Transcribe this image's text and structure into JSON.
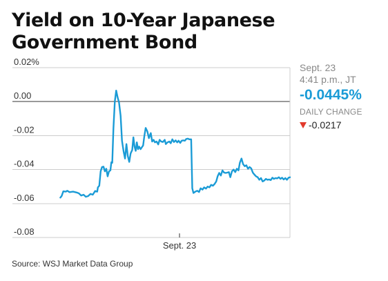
{
  "header": {
    "title": "Yield on 10-Year Japanese Government Bond"
  },
  "colors": {
    "line": "#1a9bd6",
    "grid": "#cccccc",
    "zero_line": "#333333",
    "down_arrow": "#e23a2c"
  },
  "panel": {
    "date": "Sept. 23",
    "time": "4:41 p.m., JT",
    "value": "-0.0445%",
    "change_label": "DAILY CHANGE",
    "change": "-0.0217",
    "change_direction_icon": "down-triangle-icon"
  },
  "footer": {
    "source": "Source: WSJ Market Data Group"
  },
  "chart_data": {
    "type": "line",
    "title": "Yield on 10-Year Japanese Government Bond",
    "xlabel": "",
    "ylabel": "",
    "ylim": [
      -0.08,
      0.02
    ],
    "xlim": [
      0,
      100
    ],
    "grid": true,
    "y_ticks": [
      0.02,
      0.0,
      -0.02,
      -0.04,
      -0.06,
      -0.08
    ],
    "y_tick_labels": [
      "0.02%",
      "0.00",
      "-0.02",
      "-0.04",
      "-0.06",
      "-0.08"
    ],
    "x_tick_labels": [
      {
        "x": 52.4,
        "label": "Sept. 23"
      }
    ],
    "series": [
      {
        "values": [
          [
            1.0,
            -0.0565
          ],
          [
            1.6,
            -0.0555
          ],
          [
            2.3,
            -0.0528
          ],
          [
            3.4,
            -0.053
          ],
          [
            4.0,
            -0.0525
          ],
          [
            5.0,
            -0.0533
          ],
          [
            6.5,
            -0.053
          ],
          [
            8.0,
            -0.0535
          ],
          [
            9.0,
            -0.054
          ],
          [
            10.0,
            -0.0553
          ],
          [
            11.0,
            -0.0548
          ],
          [
            12.0,
            -0.056
          ],
          [
            13.0,
            -0.0556
          ],
          [
            14.0,
            -0.0543
          ],
          [
            15.0,
            -0.0548
          ],
          [
            16.0,
            -0.0526
          ],
          [
            16.9,
            -0.053
          ],
          [
            17.2,
            -0.0505
          ],
          [
            17.8,
            -0.0495
          ],
          [
            18.4,
            -0.041
          ],
          [
            19.0,
            -0.0385
          ],
          [
            19.6,
            -0.0383
          ],
          [
            20.2,
            -0.041
          ],
          [
            20.8,
            -0.0395
          ],
          [
            21.4,
            -0.044
          ],
          [
            22.0,
            -0.041
          ],
          [
            22.6,
            -0.0405
          ],
          [
            23.0,
            -0.0357
          ],
          [
            23.4,
            -0.036
          ],
          [
            23.9,
            -0.0158
          ],
          [
            24.5,
            0.0
          ],
          [
            25.1,
            0.0065
          ],
          [
            25.7,
            0.0025
          ],
          [
            26.3,
            -0.0005
          ],
          [
            27.0,
            -0.0083
          ],
          [
            27.6,
            -0.023
          ],
          [
            28.3,
            -0.0295
          ],
          [
            28.9,
            -0.0335
          ],
          [
            29.5,
            -0.025
          ],
          [
            30.1,
            -0.032
          ],
          [
            30.7,
            -0.0355
          ],
          [
            31.3,
            -0.0305
          ],
          [
            32.0,
            -0.0285
          ],
          [
            32.5,
            -0.021
          ],
          [
            33.0,
            -0.0265
          ],
          [
            33.5,
            -0.029
          ],
          [
            34.0,
            -0.024
          ],
          [
            34.5,
            -0.028
          ],
          [
            35.0,
            -0.0265
          ],
          [
            35.6,
            -0.028
          ],
          [
            36.1,
            -0.027
          ],
          [
            36.7,
            -0.0258
          ],
          [
            37.2,
            -0.0205
          ],
          [
            37.8,
            -0.0155
          ],
          [
            38.5,
            -0.0175
          ],
          [
            39.2,
            -0.0215
          ],
          [
            40.0,
            -0.0185
          ],
          [
            40.6,
            -0.0235
          ],
          [
            41.2,
            -0.0225
          ],
          [
            41.8,
            -0.024
          ],
          [
            42.5,
            -0.0235
          ],
          [
            43.2,
            -0.0252
          ],
          [
            43.8,
            -0.0225
          ],
          [
            44.5,
            -0.0235
          ],
          [
            45.2,
            -0.0238
          ],
          [
            46.0,
            -0.0225
          ],
          [
            46.5,
            -0.025
          ],
          [
            47.2,
            -0.024
          ],
          [
            48.0,
            -0.0235
          ],
          [
            48.6,
            -0.0245
          ],
          [
            49.3,
            -0.0222
          ],
          [
            50.0,
            -0.0238
          ],
          [
            50.7,
            -0.0228
          ],
          [
            51.4,
            -0.024
          ],
          [
            52.0,
            -0.023
          ],
          [
            52.7,
            -0.0243
          ],
          [
            53.3,
            -0.023
          ],
          [
            54.0,
            -0.0228
          ],
          [
            54.7,
            -0.023
          ],
          [
            55.3,
            -0.022
          ],
          [
            56.0,
            -0.0218
          ],
          [
            56.6,
            -0.0222
          ],
          [
            57.4,
            -0.0222
          ],
          [
            57.9,
            -0.051
          ],
          [
            58.4,
            -0.0538
          ],
          [
            59.2,
            -0.053
          ],
          [
            60.0,
            -0.0525
          ],
          [
            60.8,
            -0.0532
          ],
          [
            61.5,
            -0.051
          ],
          [
            62.3,
            -0.0518
          ],
          [
            63.0,
            -0.0505
          ],
          [
            63.8,
            -0.0512
          ],
          [
            64.5,
            -0.05
          ],
          [
            65.3,
            -0.0505
          ],
          [
            66.0,
            -0.049
          ],
          [
            66.8,
            -0.0495
          ],
          [
            67.5,
            -0.0485
          ],
          [
            68.2,
            -0.047
          ],
          [
            68.8,
            -0.044
          ],
          [
            69.5,
            -0.042
          ],
          [
            70.2,
            -0.0435
          ],
          [
            70.9,
            -0.0405
          ],
          [
            71.6,
            -0.0418
          ],
          [
            72.3,
            -0.042
          ],
          [
            73.0,
            -0.0418
          ],
          [
            73.7,
            -0.0415
          ],
          [
            74.3,
            -0.0445
          ],
          [
            75.0,
            -0.041
          ],
          [
            75.7,
            -0.04
          ],
          [
            76.4,
            -0.0415
          ],
          [
            77.1,
            -0.0395
          ],
          [
            77.8,
            -0.0405
          ],
          [
            78.4,
            -0.036
          ],
          [
            79.1,
            -0.0335
          ],
          [
            79.8,
            -0.0368
          ],
          [
            80.5,
            -0.038
          ],
          [
            81.2,
            -0.0375
          ],
          [
            81.9,
            -0.0395
          ],
          [
            82.6,
            -0.0385
          ],
          [
            83.3,
            -0.0393
          ],
          [
            84.0,
            -0.0418
          ],
          [
            84.7,
            -0.043
          ],
          [
            85.4,
            -0.044
          ],
          [
            86.1,
            -0.0445
          ],
          [
            86.8,
            -0.046
          ],
          [
            87.5,
            -0.045
          ],
          [
            88.2,
            -0.047
          ],
          [
            88.9,
            -0.0465
          ],
          [
            89.6,
            -0.0455
          ],
          [
            90.3,
            -0.046
          ],
          [
            91.0,
            -0.0458
          ],
          [
            91.7,
            -0.0462
          ],
          [
            92.4,
            -0.0448
          ],
          [
            93.1,
            -0.0455
          ],
          [
            93.8,
            -0.045
          ],
          [
            94.5,
            -0.0452
          ],
          [
            95.2,
            -0.0445
          ],
          [
            95.9,
            -0.0455
          ],
          [
            96.6,
            -0.0448
          ],
          [
            97.3,
            -0.0458
          ],
          [
            98.0,
            -0.045
          ],
          [
            98.7,
            -0.046
          ],
          [
            99.4,
            -0.0448
          ],
          [
            100.0,
            -0.0445
          ]
        ]
      }
    ]
  }
}
